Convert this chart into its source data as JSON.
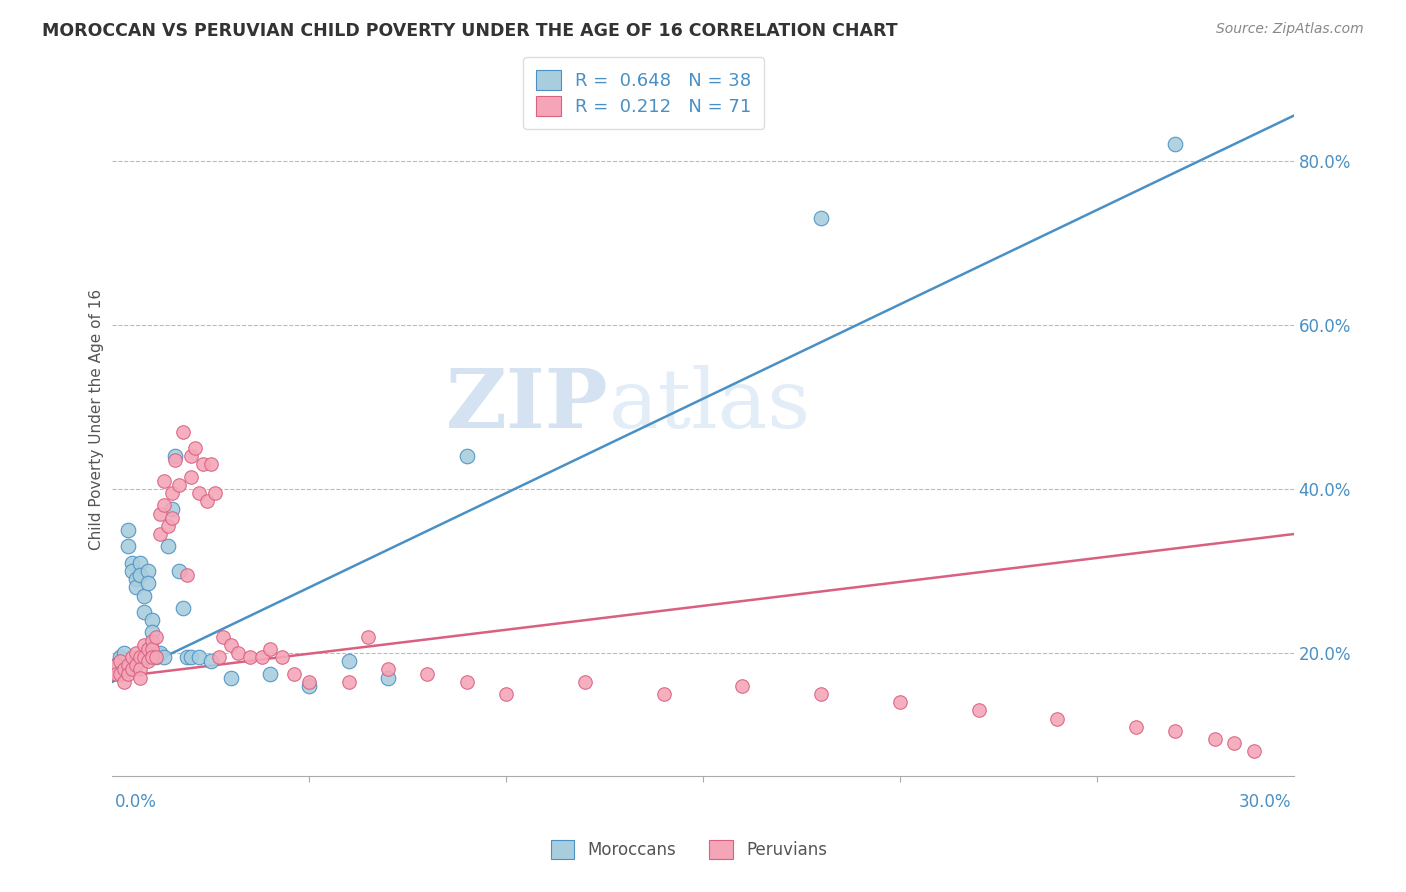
{
  "title": "MOROCCAN VS PERUVIAN CHILD POVERTY UNDER THE AGE OF 16 CORRELATION CHART",
  "source": "Source: ZipAtlas.com",
  "ylabel": "Child Poverty Under the Age of 16",
  "right_ytick_vals": [
    0.2,
    0.4,
    0.6,
    0.8
  ],
  "watermark_zip": "ZIP",
  "watermark_atlas": "atlas",
  "moroccan_color": "#A8CEDE",
  "peruvian_color": "#F4A6B8",
  "blue_line_color": "#4A90C4",
  "pink_line_color": "#D96080",
  "moroccan_x": [
    0.001,
    0.002,
    0.003,
    0.004,
    0.004,
    0.005,
    0.005,
    0.006,
    0.006,
    0.007,
    0.007,
    0.008,
    0.008,
    0.009,
    0.009,
    0.01,
    0.01,
    0.011,
    0.011,
    0.012,
    0.013,
    0.014,
    0.015,
    0.016,
    0.017,
    0.018,
    0.019,
    0.02,
    0.022,
    0.025,
    0.03,
    0.04,
    0.05,
    0.06,
    0.07,
    0.09,
    0.18,
    0.27
  ],
  "moroccan_y": [
    0.185,
    0.195,
    0.2,
    0.35,
    0.33,
    0.31,
    0.3,
    0.29,
    0.28,
    0.31,
    0.295,
    0.27,
    0.25,
    0.3,
    0.285,
    0.24,
    0.225,
    0.2,
    0.195,
    0.2,
    0.195,
    0.33,
    0.375,
    0.44,
    0.3,
    0.255,
    0.195,
    0.195,
    0.195,
    0.19,
    0.17,
    0.175,
    0.16,
    0.19,
    0.17,
    0.44,
    0.73,
    0.82
  ],
  "peruvian_x": [
    0.001,
    0.001,
    0.002,
    0.002,
    0.003,
    0.003,
    0.004,
    0.004,
    0.005,
    0.005,
    0.006,
    0.006,
    0.007,
    0.007,
    0.007,
    0.008,
    0.008,
    0.009,
    0.009,
    0.01,
    0.01,
    0.01,
    0.011,
    0.011,
    0.012,
    0.012,
    0.013,
    0.013,
    0.014,
    0.015,
    0.015,
    0.016,
    0.017,
    0.018,
    0.019,
    0.02,
    0.02,
    0.021,
    0.022,
    0.023,
    0.024,
    0.025,
    0.026,
    0.027,
    0.028,
    0.03,
    0.032,
    0.035,
    0.038,
    0.04,
    0.043,
    0.046,
    0.05,
    0.06,
    0.065,
    0.07,
    0.08,
    0.09,
    0.1,
    0.12,
    0.14,
    0.16,
    0.18,
    0.2,
    0.22,
    0.24,
    0.26,
    0.27,
    0.28,
    0.285,
    0.29
  ],
  "peruvian_y": [
    0.185,
    0.175,
    0.19,
    0.175,
    0.18,
    0.165,
    0.185,
    0.175,
    0.195,
    0.18,
    0.2,
    0.185,
    0.195,
    0.18,
    0.17,
    0.21,
    0.195,
    0.205,
    0.19,
    0.215,
    0.205,
    0.195,
    0.22,
    0.195,
    0.37,
    0.345,
    0.41,
    0.38,
    0.355,
    0.395,
    0.365,
    0.435,
    0.405,
    0.47,
    0.295,
    0.44,
    0.415,
    0.45,
    0.395,
    0.43,
    0.385,
    0.43,
    0.395,
    0.195,
    0.22,
    0.21,
    0.2,
    0.195,
    0.195,
    0.205,
    0.195,
    0.175,
    0.165,
    0.165,
    0.22,
    0.18,
    0.175,
    0.165,
    0.15,
    0.165,
    0.15,
    0.16,
    0.15,
    0.14,
    0.13,
    0.12,
    0.11,
    0.105,
    0.095,
    0.09,
    0.08
  ],
  "xlim": [
    0.0,
    0.3
  ],
  "ylim": [
    0.05,
    0.92
  ],
  "moroccan_trend_x": [
    0.0,
    0.3
  ],
  "moroccan_trend_y": [
    0.165,
    0.855
  ],
  "peruvian_trend_x": [
    0.0,
    0.3
  ],
  "peruvian_trend_y": [
    0.17,
    0.345
  ]
}
